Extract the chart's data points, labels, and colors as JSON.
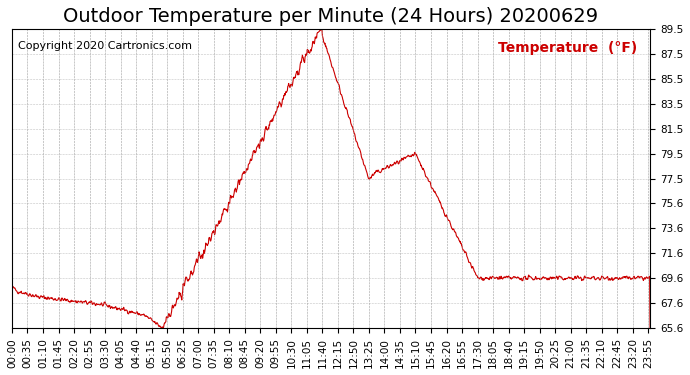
{
  "title": "Outdoor Temperature per Minute (24 Hours) 20200629",
  "copyright_text": "Copyright 2020 Cartronics.com",
  "legend_text": "Temperature  (°F)",
  "line_color": "#cc0000",
  "background_color": "#ffffff",
  "grid_color": "#aaaaaa",
  "ylim": [
    65.6,
    89.5
  ],
  "yticks": [
    65.6,
    67.6,
    69.6,
    71.6,
    73.6,
    75.6,
    77.5,
    79.5,
    81.5,
    83.5,
    85.5,
    87.5,
    89.5
  ],
  "title_fontsize": 14,
  "tick_fontsize": 7.5,
  "copyright_fontsize": 8,
  "legend_fontsize": 10
}
